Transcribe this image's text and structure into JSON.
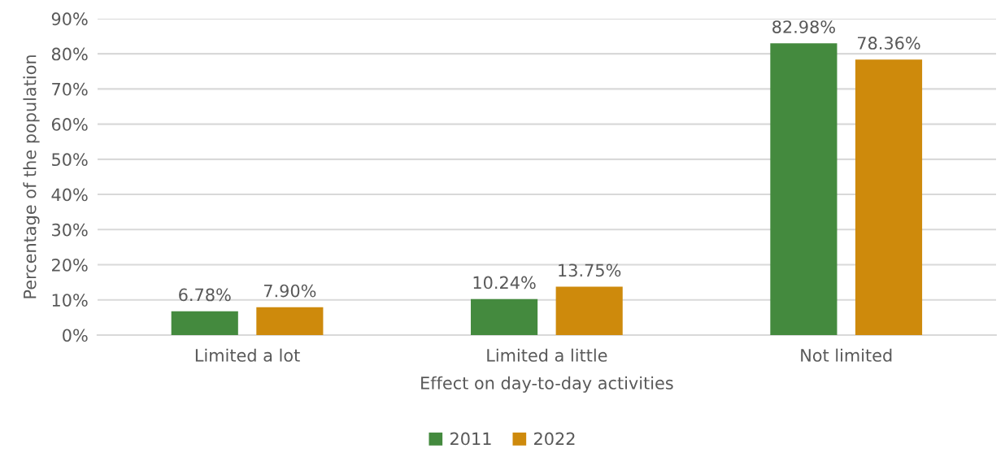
{
  "chart_data": {
    "type": "bar",
    "xlabel": "Effect on day-to-day activities",
    "ylabel": "Percentage of the population",
    "categories": [
      "Limited a lot",
      "Limited a little",
      "Not limited"
    ],
    "series": [
      {
        "name": "2011",
        "color": "#448a3e",
        "values": [
          6.78,
          10.24,
          82.98
        ],
        "value_labels": [
          "6.78%",
          "10.24%",
          "82.98%"
        ]
      },
      {
        "name": "2022",
        "color": "#ce8a0c",
        "values": [
          7.9,
          13.75,
          78.36
        ],
        "value_labels": [
          "7.90%",
          "13.75%",
          "78.36%"
        ]
      }
    ],
    "ylim": [
      0,
      90
    ],
    "yticks": [
      {
        "value": 0,
        "label": "0%"
      },
      {
        "value": 10,
        "label": "10%"
      },
      {
        "value": 20,
        "label": "20%"
      },
      {
        "value": 30,
        "label": "30%"
      },
      {
        "value": 40,
        "label": "40%"
      },
      {
        "value": 50,
        "label": "50%"
      },
      {
        "value": 60,
        "label": "60%"
      },
      {
        "value": 70,
        "label": "70%"
      },
      {
        "value": 80,
        "label": "80%"
      },
      {
        "value": 90,
        "label": "90%"
      }
    ],
    "grid": "y",
    "legend": "bottom"
  }
}
